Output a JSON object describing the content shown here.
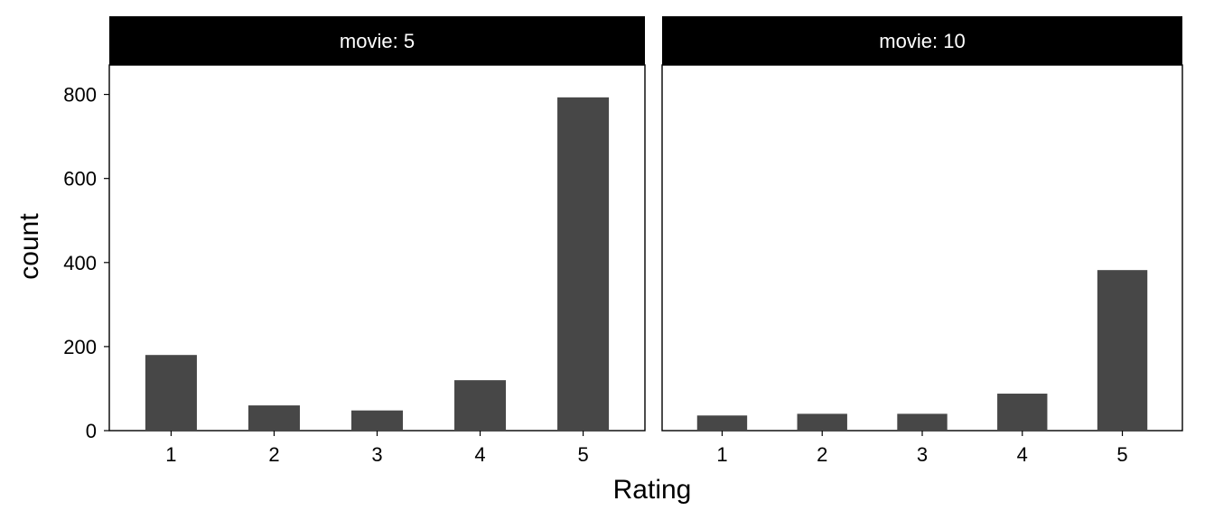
{
  "chart_data": {
    "type": "bar",
    "facet_label_prefix": "movie: ",
    "categories": [
      "1",
      "2",
      "3",
      "4",
      "5"
    ],
    "xlabel": "Rating",
    "ylabel": "count",
    "ylim": [
      0,
      870
    ],
    "yticks": [
      0,
      200,
      400,
      600,
      800
    ],
    "grid": false,
    "bar_color": "#474747",
    "strip_color": "#000000",
    "panels": [
      {
        "facet": "5",
        "values": [
          180,
          60,
          48,
          120,
          793
        ]
      },
      {
        "facet": "10",
        "values": [
          36,
          40,
          40,
          88,
          382
        ]
      }
    ]
  }
}
